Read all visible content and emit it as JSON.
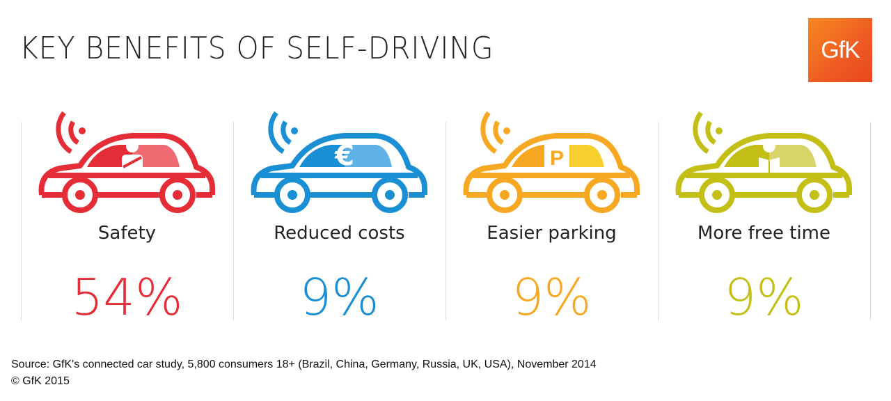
{
  "title": "KEY BENEFITS OF SELF-DRIVING",
  "logo": "GfK",
  "benefits": [
    {
      "label": "Safety",
      "value": "54%",
      "color": "#e52d38",
      "light": "#f06a72",
      "icon": "seatbelt-person-icon"
    },
    {
      "label": "Reduced costs",
      "value": "9%",
      "color": "#1b8fd4",
      "light": "#5fb2e6",
      "icon": "euro-icon",
      "icon_text": "€"
    },
    {
      "label": "Easier parking",
      "value": "9%",
      "color": "#f7a823",
      "light": "#f7d030",
      "icon": "parking-icon",
      "icon_text": "P"
    },
    {
      "label": "More free time",
      "value": "9%",
      "color": "#c4bf17",
      "light": "#d7d46a",
      "icon": "reading-person-icon"
    }
  ],
  "source": "Source: GfK's connected car study, 5,800 consumers 18+ (Brazil, China, Germany, Russia, UK, USA), November 2014",
  "copyright": "© GfK 2015"
}
